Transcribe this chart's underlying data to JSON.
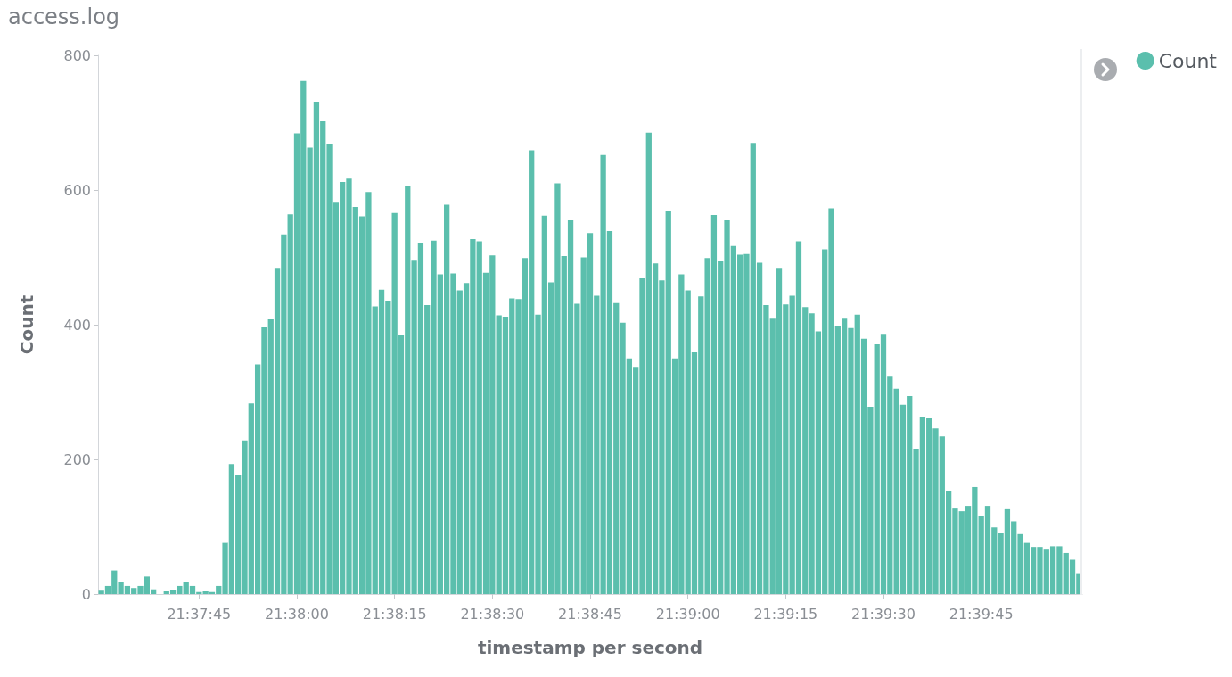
{
  "chart_data": {
    "type": "bar",
    "title": "access.log",
    "xlabel": "timestamp per second",
    "ylabel": "Count",
    "categories": [
      null,
      null,
      null,
      null,
      null,
      null,
      null,
      null,
      null,
      null,
      null,
      null,
      null,
      null,
      null,
      "21:37:45",
      null,
      null,
      null,
      null,
      null,
      null,
      null,
      null,
      null,
      null,
      null,
      null,
      null,
      null,
      "21:38:00",
      null,
      null,
      null,
      null,
      null,
      null,
      null,
      null,
      null,
      null,
      null,
      null,
      null,
      null,
      "21:38:15",
      null,
      null,
      null,
      null,
      null,
      null,
      null,
      null,
      null,
      null,
      null,
      null,
      null,
      null,
      "21:38:30",
      null,
      null,
      null,
      null,
      null,
      null,
      null,
      null,
      null,
      null,
      null,
      null,
      null,
      null,
      "21:38:45",
      null,
      null,
      null,
      null,
      null,
      null,
      null,
      null,
      null,
      null,
      null,
      null,
      null,
      null,
      "21:39:00",
      null,
      null,
      null,
      null,
      null,
      null,
      null,
      null,
      null,
      null,
      null,
      null,
      null,
      null,
      "21:39:15",
      null,
      null,
      null,
      null,
      null,
      null,
      null,
      null,
      null,
      null,
      null,
      null,
      null,
      null,
      "21:39:30",
      null,
      null,
      null,
      null,
      null,
      null,
      null,
      null,
      null,
      null,
      null,
      null,
      null,
      null,
      "21:39:45",
      null,
      null,
      null,
      null,
      null,
      null,
      null,
      null,
      null,
      null,
      null,
      null,
      null,
      null,
      null
    ],
    "series": [
      {
        "name": "Count",
        "color": "#5bbfad",
        "values": [
          5,
          12,
          35,
          18,
          12,
          9,
          12,
          26,
          7,
          0,
          4,
          6,
          12,
          18,
          12,
          3,
          4,
          3,
          12,
          76,
          193,
          177,
          228,
          283,
          341,
          396,
          408,
          483,
          534,
          564,
          684,
          762,
          663,
          731,
          702,
          669,
          581,
          612,
          617,
          575,
          561,
          597,
          427,
          452,
          435,
          566,
          384,
          606,
          495,
          522,
          429,
          525,
          475,
          578,
          476,
          451,
          462,
          527,
          524,
          477,
          503,
          414,
          412,
          439,
          438,
          499,
          659,
          415,
          562,
          463,
          610,
          502,
          555,
          431,
          500,
          536,
          443,
          652,
          539,
          432,
          403,
          350,
          336,
          469,
          685,
          491,
          466,
          569,
          350,
          475,
          451,
          359,
          442,
          499,
          563,
          494,
          555,
          517,
          504,
          505,
          670,
          492,
          429,
          409,
          483,
          430,
          443,
          524,
          426,
          417,
          390,
          512,
          573,
          398,
          409,
          395,
          415,
          379,
          278,
          371,
          385,
          323,
          305,
          281,
          294,
          216,
          263,
          261,
          246,
          234,
          153,
          127,
          123,
          131,
          159,
          116,
          131,
          99,
          91,
          126,
          108,
          89,
          76,
          70,
          70,
          66,
          71,
          71,
          61,
          51,
          31
        ]
      }
    ],
    "ylim": [
      0,
      800
    ],
    "yticks": [
      0,
      200,
      400,
      600,
      800
    ],
    "grid": false,
    "legend": "top right"
  }
}
